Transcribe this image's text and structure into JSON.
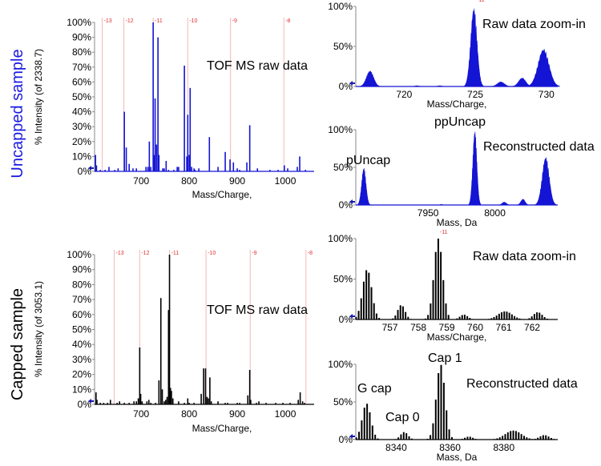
{
  "side_labels": {
    "uncapped": {
      "text": "Uncapped sample",
      "color": "#1a1ae0"
    },
    "capped": {
      "text": "Capped sample",
      "color": "#000000"
    }
  },
  "colors": {
    "uncapped": "#1414d4",
    "capped": "#000000",
    "charge_lines": "#f4b8b8",
    "charge_text": "#e03030",
    "marker": "#1a1ab0"
  },
  "chart_data": [
    {
      "id": "uncapped-raw",
      "type": "bar",
      "title": "TOF MS raw data",
      "xlabel": "Mass/Charge,",
      "ylabel": "% Intensity (of 2338.7)",
      "xlim": [
        603,
        1060
      ],
      "ylim": [
        0,
        100
      ],
      "xticks": [
        700,
        800,
        900,
        1000
      ],
      "yticks": [
        "0%",
        "10%",
        "20%",
        "30%",
        "40%",
        "50%",
        "60%",
        "70%",
        "80%",
        "90%",
        "100%"
      ],
      "charge_states": [
        {
          "label": "-13",
          "x": 619
        },
        {
          "label": "-12",
          "x": 664
        },
        {
          "label": "-11",
          "x": 725
        },
        {
          "label": "-10",
          "x": 797
        },
        {
          "label": "-9",
          "x": 886
        },
        {
          "label": "-8",
          "x": 997
        }
      ],
      "peaks": [
        [
          605,
          11
        ],
        [
          607,
          4
        ],
        [
          615,
          1
        ],
        [
          625,
          1
        ],
        [
          633,
          3
        ],
        [
          645,
          1
        ],
        [
          652,
          2
        ],
        [
          665,
          40
        ],
        [
          669,
          16
        ],
        [
          675,
          5
        ],
        [
          683,
          2
        ],
        [
          690,
          2
        ],
        [
          710,
          3
        ],
        [
          714,
          3
        ],
        [
          717,
          20
        ],
        [
          720,
          3
        ],
        [
          725,
          100
        ],
        [
          727,
          11
        ],
        [
          729,
          49
        ],
        [
          732,
          18
        ],
        [
          735,
          90
        ],
        [
          737,
          11
        ],
        [
          745,
          2
        ],
        [
          748,
          2
        ],
        [
          752,
          7
        ],
        [
          757,
          1
        ],
        [
          768,
          1
        ],
        [
          775,
          3
        ],
        [
          778,
          3
        ],
        [
          790,
          71
        ],
        [
          795,
          10
        ],
        [
          797,
          38
        ],
        [
          800,
          11
        ],
        [
          802,
          56
        ],
        [
          805,
          3
        ],
        [
          810,
          2
        ],
        [
          812,
          1
        ],
        [
          820,
          2
        ],
        [
          842,
          23
        ],
        [
          860,
          3
        ],
        [
          875,
          13
        ],
        [
          885,
          8
        ],
        [
          892,
          6
        ],
        [
          900,
          2
        ],
        [
          905,
          1
        ],
        [
          920,
          6
        ],
        [
          926,
          31
        ],
        [
          942,
          2
        ],
        [
          968,
          1
        ],
        [
          985,
          1
        ],
        [
          998,
          4
        ],
        [
          1005,
          2
        ],
        [
          1025,
          3
        ],
        [
          1030,
          10
        ],
        [
          1042,
          1
        ]
      ]
    },
    {
      "id": "uncapped-zoom",
      "type": "area",
      "title": "Raw data zoom-in",
      "xlabel": "Mass/Charge,",
      "xlim": [
        716.6,
        730.8
      ],
      "ylim": [
        0,
        100
      ],
      "xticks": [
        720,
        725,
        730
      ],
      "yticks": [
        "0%",
        "50%",
        "100%"
      ],
      "charge_states": [
        {
          "label": "-11",
          "x": 725
        }
      ],
      "peaks": [
        {
          "center": 717.6,
          "height": 20,
          "width": 0.25
        },
        {
          "center": 720.9,
          "height": 1,
          "width": 0.15
        },
        {
          "center": 722.5,
          "height": 1,
          "width": 0.15
        },
        {
          "center": 724.9,
          "height": 100,
          "width": 0.22
        },
        {
          "center": 726.8,
          "height": 6,
          "width": 0.25
        },
        {
          "center": 728.3,
          "height": 11,
          "width": 0.25
        },
        {
          "center": 729.8,
          "height": 48,
          "width": 0.38
        }
      ]
    },
    {
      "id": "uncapped-reconstructed",
      "type": "area",
      "title": "Reconstructed data",
      "xlabel": "Mass, Da",
      "xlim": [
        7896,
        8047
      ],
      "ylim": [
        0,
        100
      ],
      "xticks": [
        7950,
        8000
      ],
      "yticks": [
        "0%",
        "50%",
        "100%"
      ],
      "annotations": [
        {
          "text": "pUncap",
          "color": "#1a1ae0"
        },
        {
          "text": "ppUncap",
          "color": "#1a1ae0"
        }
      ],
      "peaks": [
        {
          "center": 7902,
          "height": 50,
          "width": 1.6
        },
        {
          "center": 7960,
          "height": 1,
          "width": 0.8
        },
        {
          "center": 7985,
          "height": 100,
          "width": 1.5
        },
        {
          "center": 8007,
          "height": 4,
          "width": 1.6
        },
        {
          "center": 8021,
          "height": 8,
          "width": 1.6
        },
        {
          "center": 8038,
          "height": 65,
          "width": 2.6
        }
      ]
    },
    {
      "id": "capped-raw",
      "type": "bar",
      "title": "TOF MS raw data",
      "xlabel": "Mass/Charge,",
      "ylabel": "% Intensity (of 3053.1)",
      "xlim": [
        603,
        1060
      ],
      "ylim": [
        0,
        100
      ],
      "xticks": [
        700,
        800,
        900,
        1000
      ],
      "yticks": [
        "0%",
        "10%",
        "20%",
        "30%",
        "40%",
        "50%",
        "60%",
        "70%",
        "80%",
        "90%",
        "100%"
      ],
      "charge_states": [
        {
          "label": "-13",
          "x": 644
        },
        {
          "label": "-12",
          "x": 697
        },
        {
          "label": "-11",
          "x": 759
        },
        {
          "label": "-10",
          "x": 835
        },
        {
          "label": "-9",
          "x": 927
        },
        {
          "label": "-8",
          "x": 1043
        }
      ],
      "peaks": [
        [
          606,
          8
        ],
        [
          608,
          3
        ],
        [
          615,
          1
        ],
        [
          622,
          1
        ],
        [
          630,
          1
        ],
        [
          636,
          3
        ],
        [
          650,
          1
        ],
        [
          655,
          2
        ],
        [
          665,
          1
        ],
        [
          675,
          1
        ],
        [
          685,
          2
        ],
        [
          690,
          2
        ],
        [
          694,
          4
        ],
        [
          697,
          38
        ],
        [
          699,
          7
        ],
        [
          702,
          2
        ],
        [
          712,
          2
        ],
        [
          716,
          3
        ],
        [
          720,
          1
        ],
        [
          730,
          1
        ],
        [
          737,
          16
        ],
        [
          741,
          71
        ],
        [
          744,
          10
        ],
        [
          748,
          2
        ],
        [
          751,
          3
        ],
        [
          754,
          5
        ],
        [
          757,
          63
        ],
        [
          759,
          100
        ],
        [
          761,
          11
        ],
        [
          763,
          9
        ],
        [
          766,
          4
        ],
        [
          778,
          2
        ],
        [
          790,
          1
        ],
        [
          797,
          4
        ],
        [
          800,
          1
        ],
        [
          810,
          1
        ],
        [
          825,
          7
        ],
        [
          830,
          24
        ],
        [
          834,
          24
        ],
        [
          837,
          5
        ],
        [
          840,
          4
        ],
        [
          843,
          18
        ],
        [
          846,
          2
        ],
        [
          860,
          2
        ],
        [
          875,
          1
        ],
        [
          880,
          1
        ],
        [
          900,
          1
        ],
        [
          905,
          1
        ],
        [
          922,
          6
        ],
        [
          926,
          23
        ],
        [
          928,
          3
        ],
        [
          940,
          1
        ],
        [
          945,
          2
        ],
        [
          960,
          1
        ],
        [
          980,
          1
        ],
        [
          995,
          1
        ],
        [
          1010,
          1
        ],
        [
          1027,
          3
        ],
        [
          1031,
          8
        ],
        [
          1036,
          2
        ],
        [
          1040,
          1
        ]
      ]
    },
    {
      "id": "capped-zoom",
      "type": "bar",
      "title": "Raw data zoom-in",
      "xlabel": "Mass/Charge,",
      "xlim": [
        755.8,
        762.9
      ],
      "ylim": [
        0,
        100
      ],
      "xticks": [
        757,
        758,
        759,
        760,
        761,
        762
      ],
      "yticks": [
        "0%",
        "50%",
        "100%"
      ],
      "charge_states": [
        {
          "label": "-11",
          "x": 758.7
        }
      ],
      "clusters": [
        {
          "center": 756.2,
          "height": 62,
          "spacing": 0.09,
          "sigma": 0.16
        },
        {
          "center": 757.4,
          "height": 18,
          "spacing": 0.09,
          "sigma": 0.13
        },
        {
          "center": 758.7,
          "height": 100,
          "spacing": 0.09,
          "sigma": 0.15
        },
        {
          "center": 759.6,
          "height": 6,
          "spacing": 0.09,
          "sigma": 0.14
        },
        {
          "center": 761.05,
          "height": 10,
          "spacing": 0.09,
          "sigma": 0.25
        },
        {
          "center": 762.2,
          "height": 9,
          "spacing": 0.09,
          "sigma": 0.16
        }
      ]
    },
    {
      "id": "capped-reconstructed",
      "type": "bar",
      "title": "Reconstructed data",
      "xlabel": "Mass, Da",
      "xlim": [
        8325,
        8400
      ],
      "ylim": [
        0,
        100
      ],
      "xticks": [
        8340,
        8360,
        8380
      ],
      "yticks": [
        "0%",
        "50%",
        "100%"
      ],
      "annotations": [
        {
          "text": "G cap",
          "color": "#000000"
        },
        {
          "text": "Cap 0",
          "color": "#000000"
        },
        {
          "text": "Cap 1",
          "color": "#000000"
        }
      ],
      "clusters": [
        {
          "center": 8329,
          "height": 48,
          "spacing": 1,
          "sigma": 1.6
        },
        {
          "center": 8343,
          "height": 10,
          "spacing": 1,
          "sigma": 1.4
        },
        {
          "center": 8356.5,
          "height": 100,
          "spacing": 1,
          "sigma": 1.6
        },
        {
          "center": 8367,
          "height": 4,
          "spacing": 1,
          "sigma": 1.5
        },
        {
          "center": 8383.5,
          "height": 12,
          "spacing": 1,
          "sigma": 3
        },
        {
          "center": 8395,
          "height": 6,
          "spacing": 1,
          "sigma": 1.8
        }
      ]
    }
  ]
}
